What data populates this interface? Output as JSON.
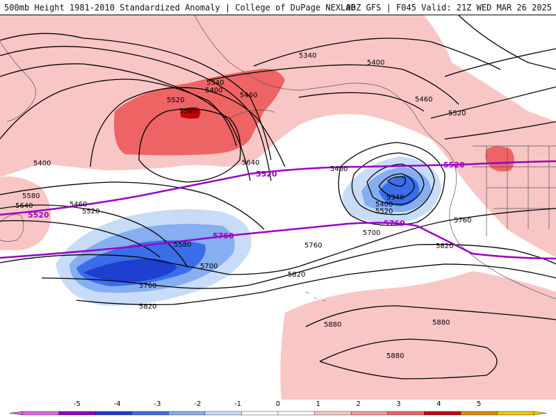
{
  "header": {
    "title": "500mb Height 1981-2010 Standardized Anomaly | College of DuPage NEXLAB",
    "run_info": "00Z GFS | F045 Valid: 21Z WED MAR 26 2025"
  },
  "contour_labels": {
    "l5340a": "5340",
    "l5400a": "5400",
    "l5340b": "5340",
    "l5400b": "5400",
    "l5460a": "5460",
    "l5520a": "5520",
    "l5580a": "5580",
    "l5640a": "5640",
    "l5460b": "5460",
    "l5460c": "5460",
    "l5520b": "5520",
    "l5340c": "5340",
    "l5400c": "5400",
    "l5520c": "5520",
    "l5700a": "5700",
    "l5400d": "5400",
    "l5580b": "5580",
    "l5640b": "5640",
    "l5460d": "5460",
    "l5520d": "5520",
    "l5580c": "5580",
    "l5700b": "5700",
    "l5760a": "5760",
    "l5820a": "5820",
    "l5760b": "5760",
    "l5820b": "5820",
    "l5760c": "5760",
    "l5820c": "5820",
    "l5880a": "5880",
    "l5880b": "5880",
    "l5880c": "5880"
  },
  "purple_labels": {
    "p5520a": "5520",
    "p5520b": "5520",
    "p5520c": "5520",
    "p5760a": "5760",
    "p5760b": "5760"
  },
  "colorbar": {
    "colors": [
      "#e066e0",
      "#8f00c8",
      "#1f3fd0",
      "#3a6ee8",
      "#86aef0",
      "#c8dcf8",
      "#ffffff",
      "#ffffff",
      "#f9c6c6",
      "#f59a9a",
      "#ee6464",
      "#c80000",
      "#e08a00",
      "#f7c600"
    ],
    "ticks": [
      "-5",
      "-4",
      "-3",
      "-2",
      "-1",
      "0",
      "1",
      "2",
      "3",
      "4",
      "5"
    ]
  },
  "colors": {
    "pos1": "#f9c6c6",
    "pos2": "#f59a9a",
    "pos3": "#ee6464",
    "pos4": "#c80000",
    "neg1": "#c8dcf8",
    "neg2": "#86aef0",
    "neg3": "#3a6ee8",
    "neg4": "#1f3fd0",
    "purple": "#9b00c8"
  }
}
